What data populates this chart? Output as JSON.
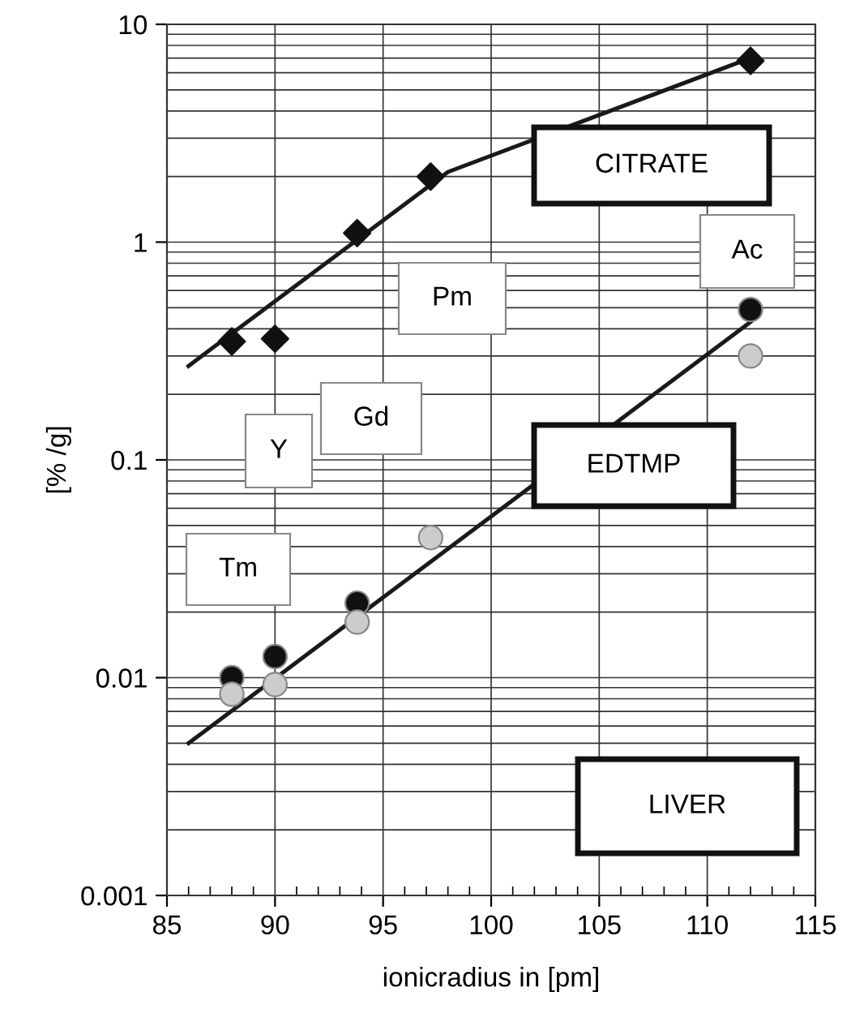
{
  "chart_data": {
    "type": "scatter",
    "xlabel": "ionicradius in [pm]",
    "ylabel": "[% /g]",
    "log": "y",
    "xlim": [
      85,
      115
    ],
    "ylim": [
      0.001,
      10
    ],
    "xticks": [
      85,
      90,
      95,
      100,
      105,
      110,
      115
    ],
    "yticks": [
      0.001,
      0.01,
      0.1,
      1,
      10
    ],
    "grid": true,
    "series": [
      {
        "type": "line",
        "color": "#1a1a1a",
        "x": [
          86,
          98,
          112
        ],
        "values": [
          0.27,
          2.1,
          7.0
        ],
        "marker": "none",
        "line_style": "solid"
      },
      {
        "color": "#111111",
        "x": [
          88,
          90,
          93.8,
          97.2,
          112
        ],
        "values": [
          0.35,
          0.36,
          1.1,
          2.0,
          6.8
        ],
        "marker": "diamond"
      },
      {
        "type": "line",
        "color": "#1a1a1a",
        "x": [
          86,
          112
        ],
        "values": [
          0.005,
          0.43
        ],
        "marker": "none",
        "line_style": "solid"
      },
      {
        "color": "#111111",
        "x": [
          88,
          90,
          93.8,
          112
        ],
        "values": [
          0.01,
          0.0125,
          0.022,
          0.49
        ],
        "marker": "circle"
      },
      {
        "color": "#cccccc",
        "x": [
          88,
          90,
          93.8,
          97.2,
          112
        ],
        "values": [
          0.0084,
          0.0093,
          0.018,
          0.044,
          0.3
        ],
        "marker": "circle"
      }
    ],
    "annotations": [
      "CITRATE",
      "Ac",
      "Pm",
      "Gd",
      "Y",
      "EDTMP",
      "Tm",
      "LIVER"
    ]
  }
}
